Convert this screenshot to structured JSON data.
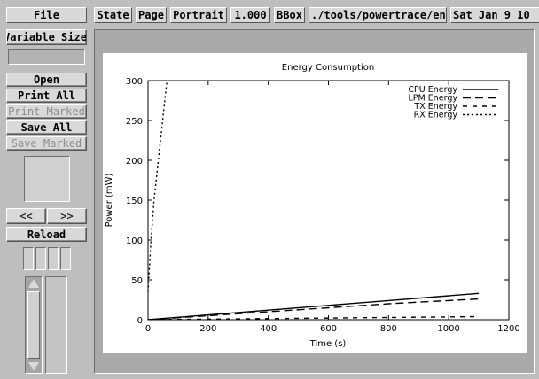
{
  "toolbar": {
    "file_label": "File",
    "state_label": "State",
    "page_label": "Page",
    "orientation_label": "Portrait",
    "zoom_label": "1.000",
    "bbox_label": "BBox",
    "filename": "./tools/powertrace/energy",
    "date": "Sat Jan  9 10"
  },
  "sidebar": {
    "size_label": "Variable Size",
    "buttons": {
      "open": "Open",
      "print_all": "Print All",
      "print_marked": "Print Marked",
      "save_all": "Save All",
      "save_marked": "Save Marked",
      "prev": "<<",
      "next": ">>",
      "reload": "Reload"
    }
  },
  "chart_data": {
    "type": "line",
    "title": "Energy Consumption",
    "xlabel": "Time (s)",
    "ylabel": "Power (mW)",
    "xlim": [
      0,
      1200
    ],
    "ylim": [
      0,
      300
    ],
    "xticks": [
      0,
      200,
      400,
      600,
      800,
      1000,
      1200
    ],
    "yticks": [
      0,
      50,
      100,
      150,
      200,
      250,
      300
    ],
    "grid": false,
    "legend_position": "top-right",
    "series": [
      {
        "name": "CPU Energy",
        "style": "solid",
        "x": [
          0,
          200,
          400,
          600,
          800,
          1000,
          1100
        ],
        "y": [
          0,
          6,
          12,
          18,
          24,
          30,
          33
        ]
      },
      {
        "name": "LPM Energy",
        "style": "longdash",
        "x": [
          0,
          200,
          400,
          600,
          800,
          1000,
          1100
        ],
        "y": [
          0,
          5,
          10,
          15,
          20,
          24,
          26
        ]
      },
      {
        "name": "TX Energy",
        "style": "dash",
        "x": [
          0,
          200,
          400,
          600,
          800,
          1000,
          1100
        ],
        "y": [
          0,
          0.7,
          1.4,
          2.1,
          2.8,
          3.5,
          3.9
        ]
      },
      {
        "name": "RX Energy",
        "style": "dot",
        "x": [
          0,
          10,
          20,
          40,
          60,
          70
        ],
        "y": [
          35,
          100,
          150,
          220,
          290,
          320
        ]
      }
    ]
  }
}
